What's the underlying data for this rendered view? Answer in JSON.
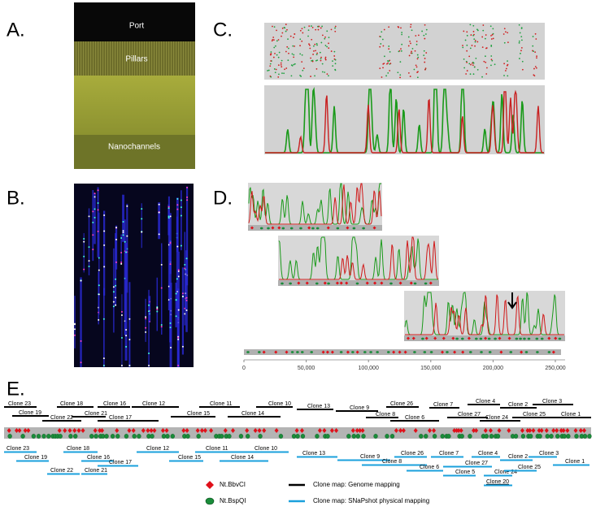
{
  "panels": {
    "a": {
      "label": "A.",
      "regions": [
        "Port",
        "Pillars",
        "Nanochannels"
      ]
    },
    "b": {
      "label": "B."
    },
    "c": {
      "label": "C."
    },
    "d": {
      "label": "D.",
      "axis_ticks": [
        "0",
        "50,000",
        "100,000",
        "150,000",
        "200,000",
        "250,000"
      ]
    },
    "e": {
      "label": "E.",
      "genome_clones": [
        "Clone 23",
        "Clone 19",
        "Clone 18",
        "Clone 16",
        "Clone 12",
        "Clone 22",
        "Clone 21",
        "Clone 17",
        "Clone 11",
        "Clone 15",
        "Clone 10",
        "Clone 14",
        "Clone 13",
        "Clone 9",
        "Clone 8",
        "Clone 26",
        "Clone 6",
        "Clone 7",
        "Clone 4",
        "Clone 2",
        "Clone 3",
        "Clone 27",
        "Clone 24",
        "Clone 25",
        "Clone 1"
      ],
      "snapshot_clones": [
        "Clone 23",
        "Clone 19",
        "Clone 18",
        "Clone 16",
        "Clone 22",
        "Clone 21",
        "Clone 17",
        "Clone 12",
        "Clone 15",
        "Clone 11",
        "Clone 14",
        "Clone 10",
        "Clone 13",
        "Clone 9",
        "Clone 8",
        "Clone 26",
        "Clone 6",
        "Clone 7",
        "Clone 27",
        "Clone 4",
        "Clone 5",
        "Clone 24",
        "Clone 2",
        "Clone 3",
        "Clone 25",
        "Clone 1",
        "Clone 20"
      ],
      "legend": [
        "Nt.BbvCI",
        "Nt.BspQI",
        "Clone map: Genome mapping",
        "Clone map: SNaPshot physical mapping"
      ]
    }
  }
}
